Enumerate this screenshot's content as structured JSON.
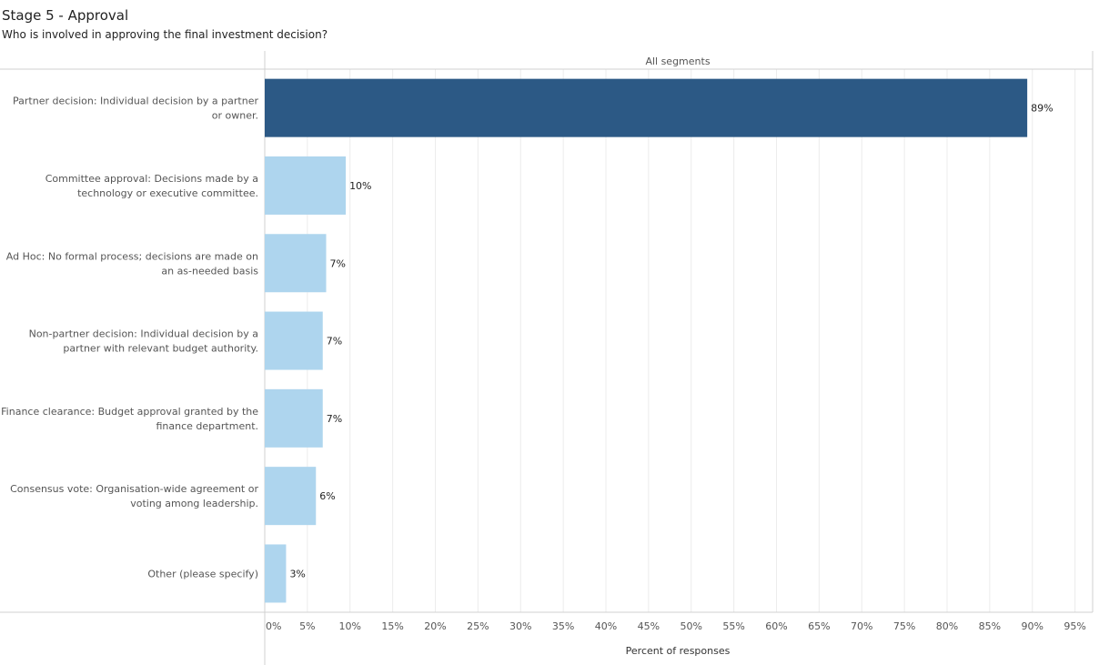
{
  "header": {
    "title": "Stage 5 - Approval",
    "subtitle": "Who is involved in approving the final investment decision?"
  },
  "chart_data": {
    "type": "bar",
    "orientation": "horizontal",
    "panel_label": "All segments",
    "xlabel": "Percent of responses",
    "ylabel": "",
    "xlim": [
      0,
      97
    ],
    "x_ticks": [
      "0%",
      "5%",
      "10%",
      "15%",
      "20%",
      "25%",
      "30%",
      "35%",
      "40%",
      "45%",
      "50%",
      "55%",
      "60%",
      "65%",
      "70%",
      "75%",
      "80%",
      "85%",
      "90%",
      "95%"
    ],
    "grid": true,
    "categories": [
      [
        "Partner decision: Individual decision by a partner",
        "or owner."
      ],
      [
        "Committee approval: Decisions made by a",
        "technology or executive committee."
      ],
      [
        "Ad Hoc: No formal process; decisions are made on",
        "an as-needed basis"
      ],
      [
        "Non-partner decision: Individual decision by a",
        "partner with relevant budget authority."
      ],
      [
        "Finance clearance: Budget approval granted by the",
        "finance department."
      ],
      [
        "Consensus vote: Organisation-wide agreement or",
        "voting among leadership."
      ],
      [
        "Other (please specify)"
      ]
    ],
    "values": [
      89.4,
      9.5,
      7.2,
      6.8,
      6.8,
      6.0,
      2.5
    ],
    "data_labels": [
      "89%",
      "10%",
      "7%",
      "7%",
      "7%",
      "6%",
      "3%"
    ],
    "highlight_index": 0,
    "colors": {
      "highlight": "#2c5985",
      "default": "#aed5ee",
      "grid": "#ececec",
      "axis": "#d0d0d0"
    }
  }
}
